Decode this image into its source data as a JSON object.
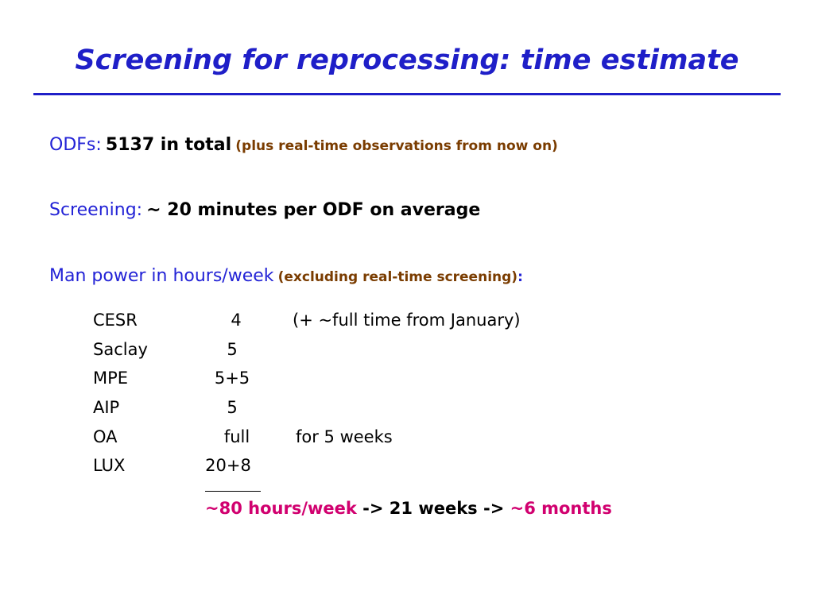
{
  "title": "Screening for reprocessing: time estimate",
  "odfs": {
    "label": "ODFs:",
    "value": "5137 in total",
    "note": "(plus real-time observations from now on)"
  },
  "screening": {
    "label": "Screening:",
    "value": "~ 20 minutes per ODF on average"
  },
  "manpower": {
    "label": "Man power in hours/week",
    "note": "(excluding real-time screening)",
    "colon": ":"
  },
  "table": {
    "rows": [
      {
        "name": "CESR",
        "hours": "4",
        "comment": "(+ ~full time from January)"
      },
      {
        "name": "Saclay",
        "hours": "5",
        "comment": ""
      },
      {
        "name": "MPE",
        "hours": "5+5",
        "comment": ""
      },
      {
        "name": "AIP",
        "hours": "5",
        "comment": ""
      },
      {
        "name": "OA",
        "hours": "full",
        "comment": "for 5 weeks"
      },
      {
        "name": "LUX",
        "hours": "20+8",
        "comment": ""
      }
    ]
  },
  "summary": {
    "total": "~80 hours/week",
    "arrow1": "-> 21 weeks ->",
    "result": "~6 months"
  },
  "colors": {
    "title": "#1f1fc8",
    "label": "#2323d6",
    "note": "#7a3c00",
    "highlight": "#d1006f"
  }
}
